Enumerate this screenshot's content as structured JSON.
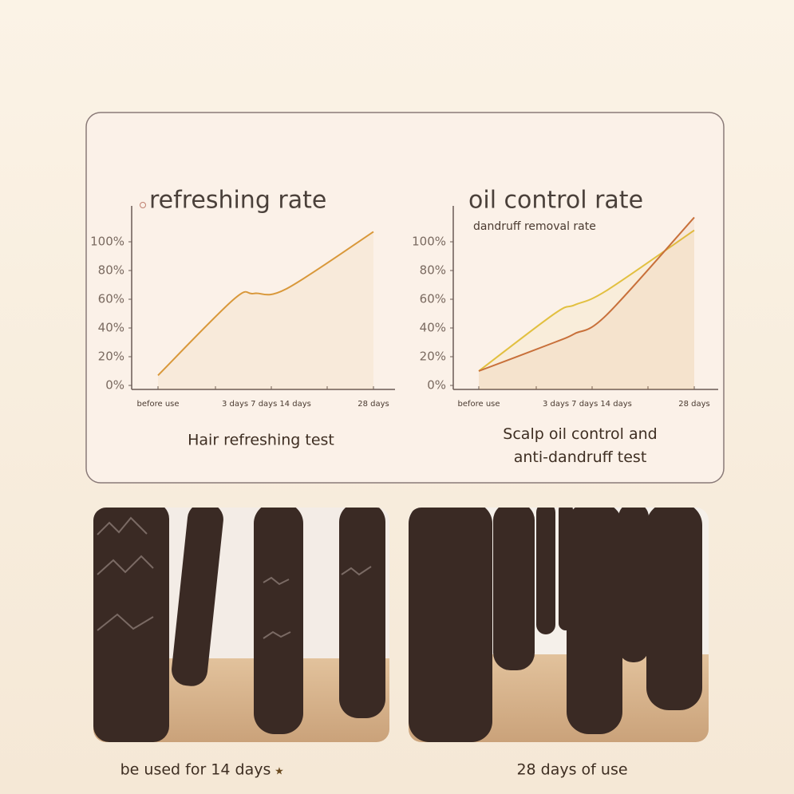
{
  "chart_data": [
    {
      "type": "line",
      "title": "refreshing rate",
      "caption": "Hair refreshing test",
      "categories": [
        "before use",
        "3 days",
        "7 days",
        "14 days",
        "28 days"
      ],
      "values": [
        7,
        60,
        64,
        67,
        107
      ],
      "color": "#d9983a",
      "ylim": [
        0,
        125
      ],
      "yticks": [
        {
          "value": 0,
          "label": "0%"
        },
        {
          "value": 20,
          "label": "20%"
        },
        {
          "value": 40,
          "label": "40%"
        },
        {
          "value": 60,
          "label": "60%"
        },
        {
          "value": 80,
          "label": "80%"
        },
        {
          "value": 100,
          "label": "100%"
        }
      ]
    },
    {
      "type": "line",
      "caption": "Scalp oil control and anti-dandruff test",
      "categories": [
        "before use",
        "3 days",
        "7 days",
        "14 days",
        "28 days"
      ],
      "series": [
        {
          "name": "oil control rate",
          "color": "#e2c040",
          "values": [
            10,
            50,
            56,
            66,
            108
          ]
        },
        {
          "name": "dandruff removal rate",
          "color": "#c8703a",
          "values": [
            10,
            30,
            36,
            49,
            117
          ]
        }
      ],
      "ylim": [
        0,
        125
      ],
      "yticks": [
        {
          "value": 0,
          "label": "0%"
        },
        {
          "value": 20,
          "label": "20%"
        },
        {
          "value": 40,
          "label": "40%"
        },
        {
          "value": 60,
          "label": "60%"
        },
        {
          "value": 80,
          "label": "80%"
        },
        {
          "value": 100,
          "label": "100%"
        }
      ]
    }
  ],
  "photos": [
    {
      "caption": "be used for 14 days"
    },
    {
      "caption": "28 days of use"
    }
  ]
}
